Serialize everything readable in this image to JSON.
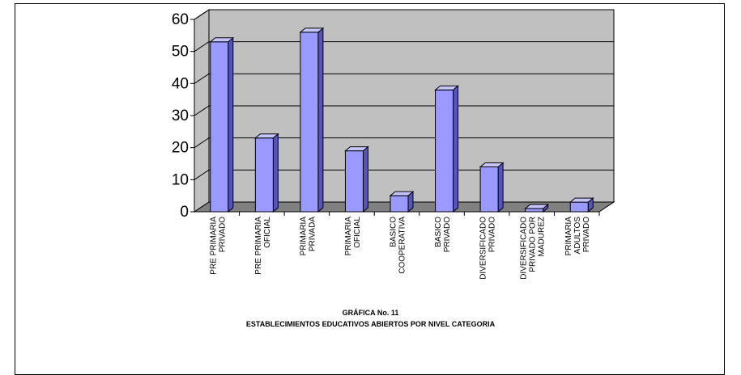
{
  "figure": {
    "caption_line1": "GRÁFICA No. 11",
    "caption_line2": "ESTABLECIMIENTOS EDUCATIVOS ABIERTOS POR NIVEL  CATEGORIA"
  },
  "colors": {
    "bar_front": "#9999ff",
    "bar_side": "#5555b8",
    "bar_top": "#c4c4ff",
    "wall": "#c0c0c0",
    "floor": "#808080"
  },
  "chart_data": {
    "type": "bar",
    "three_d": true,
    "categories": [
      [
        "PRE PRIMARIA",
        "PRIVADO"
      ],
      [
        "PRE PRIMARIA",
        "OFICIAL"
      ],
      [
        "PRIMARIA",
        "PRIVADA"
      ],
      [
        "PRIMARIA",
        "OFICIAL"
      ],
      [
        "BASICO",
        "COOPERATIVA"
      ],
      [
        "BASICO",
        "PRIVADO"
      ],
      [
        "DIVERSIFICADO",
        "PRIVADO"
      ],
      [
        "DIVERSIFICADO",
        "PRIVADO POR",
        "MADUREZ"
      ],
      [
        "PRIMARIA",
        "ADULTOS",
        "PRIVADO"
      ]
    ],
    "values": [
      53,
      23,
      56,
      19,
      5,
      38,
      14,
      1,
      3
    ],
    "ylim": [
      0,
      60
    ],
    "yticks": [
      "0",
      "10",
      "20",
      "30",
      "40",
      "50",
      "60"
    ],
    "grid": true,
    "legend": "none"
  }
}
